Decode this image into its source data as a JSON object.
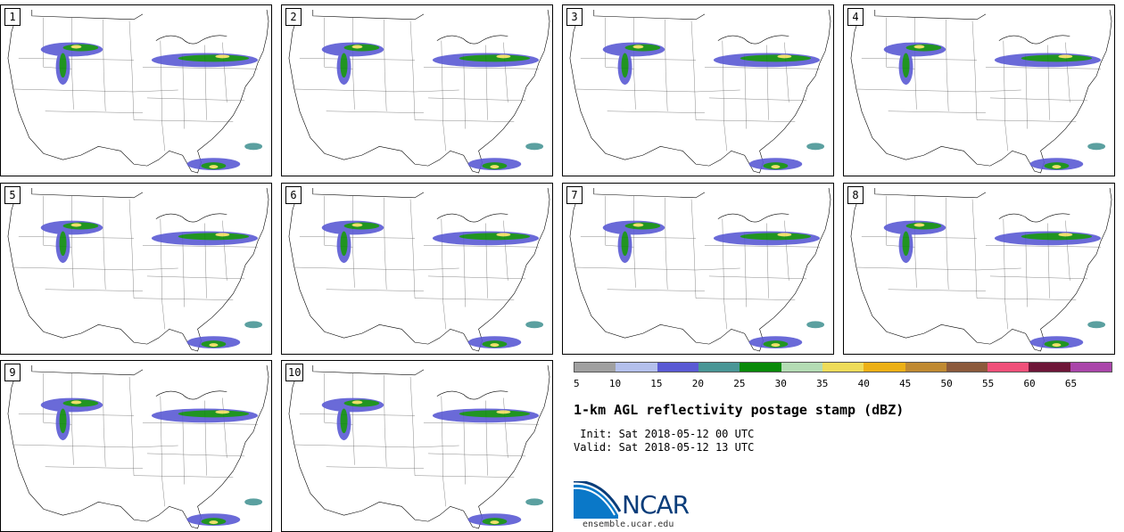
{
  "panels": [
    {
      "label": "1"
    },
    {
      "label": "2"
    },
    {
      "label": "3"
    },
    {
      "label": "4"
    },
    {
      "label": "5"
    },
    {
      "label": "6"
    },
    {
      "label": "7"
    },
    {
      "label": "8"
    },
    {
      "label": "9"
    },
    {
      "label": "10"
    }
  ],
  "colorbar": {
    "colors": [
      "#a0a0a0",
      "#b4c0ec",
      "#5a5ad4",
      "#4a9696",
      "#0a8a0a",
      "#b4dcb4",
      "#eedc5a",
      "#ecb016",
      "#c08a32",
      "#8c5a3c",
      "#f0507a",
      "#6e1638",
      "#aa46aa"
    ],
    "ticks": [
      "5",
      "10",
      "15",
      "20",
      "25",
      "30",
      "35",
      "40",
      "45",
      "50",
      "55",
      "60",
      "65"
    ]
  },
  "title": "1-km AGL reflectivity postage stamp (dBZ)",
  "init_line": " Init: Sat 2018-05-12 00 UTC",
  "valid_line": "Valid: Sat 2018-05-12 13 UTC",
  "logo": {
    "text": "NCAR",
    "url": "ensemble.ucar.edu"
  }
}
